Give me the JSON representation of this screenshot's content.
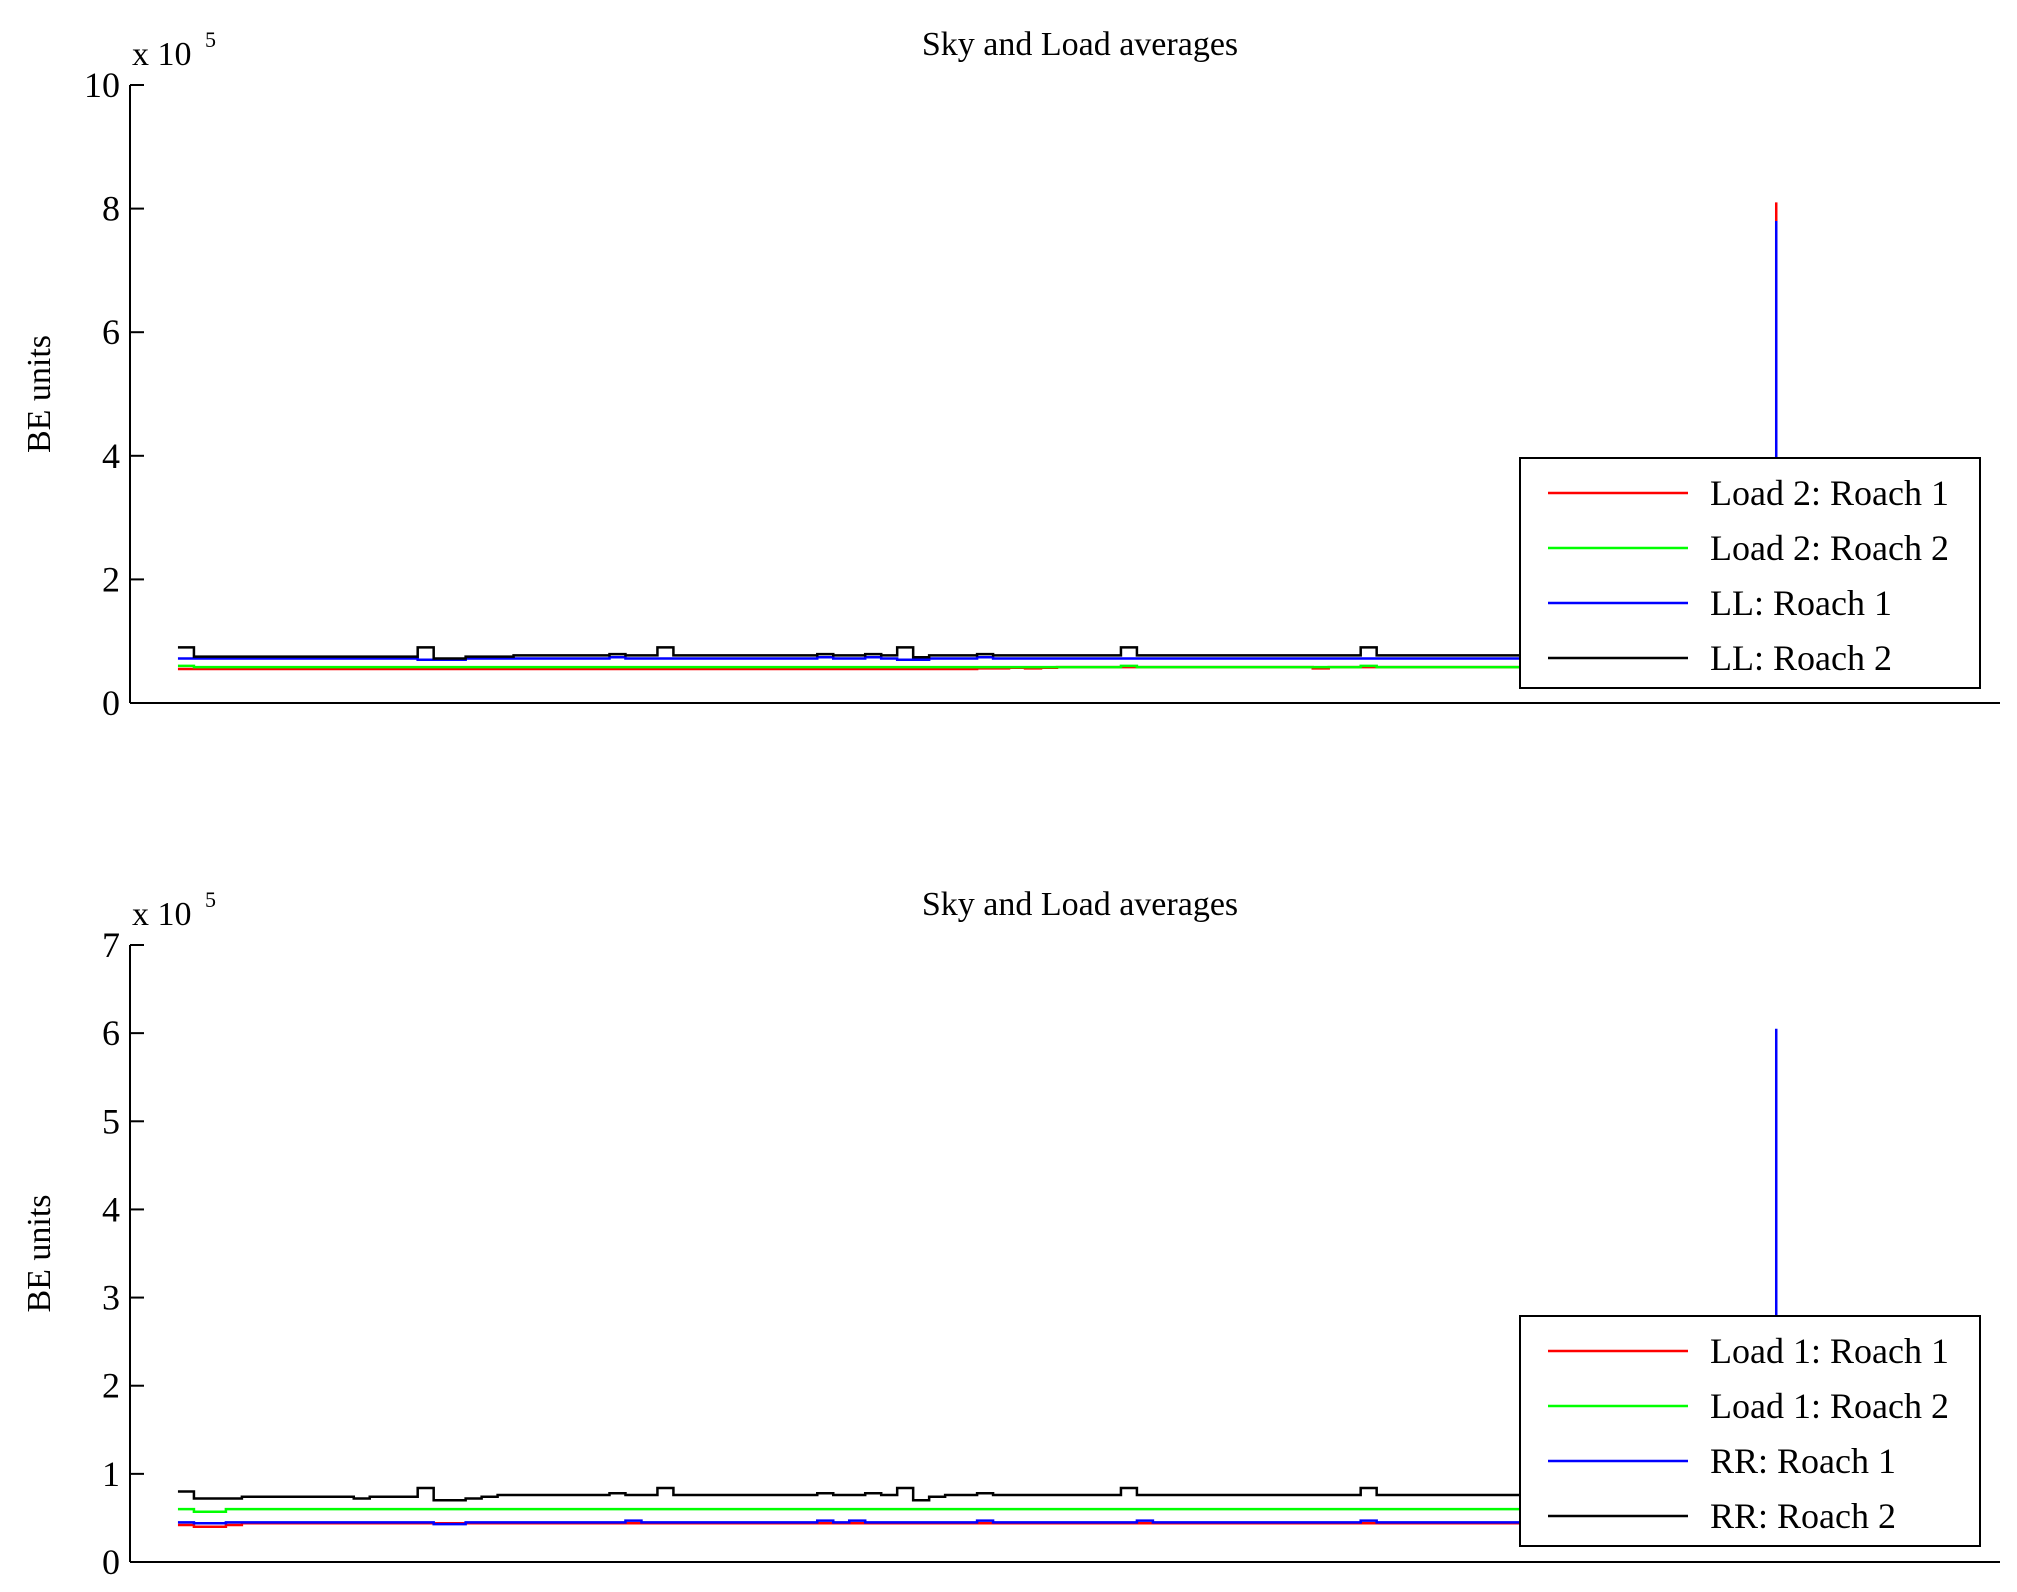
{
  "chart_data": [
    {
      "type": "line",
      "title": "Sky and Load averages",
      "xlabel": "",
      "ylabel": "BE units",
      "multiplier": "x 10",
      "multiplier_exponent": "5",
      "x": [
        0,
        1,
        2,
        3,
        4,
        5,
        6,
        7,
        8,
        9,
        10,
        11,
        12,
        13,
        14,
        15,
        16,
        17,
        18,
        19,
        20,
        21,
        22,
        23,
        24,
        25,
        26,
        27,
        28,
        29,
        30,
        31,
        32,
        33,
        34,
        35,
        36,
        37,
        38,
        39,
        40,
        41,
        42,
        43,
        44,
        45,
        46,
        47,
        48,
        49,
        50,
        51,
        52,
        53,
        54,
        55,
        56,
        57,
        58,
        59,
        60,
        61,
        62,
        63,
        64,
        65,
        66,
        67,
        68,
        69,
        70,
        71,
        72,
        73,
        74,
        75,
        76,
        77,
        78,
        79,
        80,
        81,
        82,
        83,
        84,
        85,
        86,
        87,
        88,
        89,
        90,
        91,
        92,
        93,
        94,
        95,
        96,
        97,
        98,
        99,
        100
      ],
      "xlim": [
        -3,
        114
      ],
      "ylim": [
        0,
        10
      ],
      "yticks": [
        "0",
        "2",
        "4",
        "6",
        "8",
        "10"
      ],
      "ytick_values": [
        0,
        2,
        4,
        6,
        8,
        10
      ],
      "xtick_labels": [],
      "legend_location": "bottom-right",
      "series": [
        {
          "name": "Load 2: Roach 1",
          "color": "#ff0000",
          "values": [
            0.55,
            0.55,
            0.55,
            0.55,
            0.55,
            0.55,
            0.55,
            0.55,
            0.55,
            0.55,
            0.55,
            0.55,
            0.55,
            0.55,
            0.55,
            0.55,
            0.55,
            0.55,
            0.55,
            0.55,
            0.55,
            0.55,
            0.55,
            0.55,
            0.55,
            0.55,
            0.55,
            0.55,
            0.55,
            0.55,
            0.55,
            0.55,
            0.55,
            0.55,
            0.55,
            0.55,
            0.55,
            0.55,
            0.55,
            0.55,
            0.55,
            0.55,
            0.55,
            0.55,
            0.55,
            0.55,
            0.55,
            0.55,
            0.55,
            0.55,
            0.56,
            0.56,
            0.57,
            0.56,
            0.57,
            0.58,
            0.58,
            0.58,
            0.58,
            0.58,
            0.58,
            0.58,
            0.58,
            0.58,
            0.58,
            0.58,
            0.58,
            0.58,
            0.58,
            0.58,
            0.58,
            0.56,
            0.58,
            0.58,
            0.58,
            0.58,
            0.58,
            0.58,
            0.58,
            0.58,
            0.58,
            0.58,
            0.58,
            0.58,
            0.58,
            0.58,
            0.58,
            0.58,
            0.58,
            0.58,
            0.58,
            0.58,
            0.58,
            0.58,
            0.58,
            0.58,
            0.58,
            0.58,
            0.58,
            0.58,
            8.1
          ]
        },
        {
          "name": "Load 2: Roach 2",
          "color": "#00ff00",
          "values": [
            0.6,
            0.58,
            0.58,
            0.58,
            0.58,
            0.58,
            0.58,
            0.58,
            0.58,
            0.58,
            0.58,
            0.58,
            0.58,
            0.58,
            0.58,
            0.58,
            0.58,
            0.58,
            0.58,
            0.58,
            0.58,
            0.58,
            0.58,
            0.58,
            0.58,
            0.58,
            0.58,
            0.58,
            0.58,
            0.58,
            0.58,
            0.58,
            0.58,
            0.58,
            0.58,
            0.58,
            0.58,
            0.58,
            0.58,
            0.58,
            0.58,
            0.58,
            0.58,
            0.58,
            0.58,
            0.58,
            0.58,
            0.58,
            0.58,
            0.58,
            0.58,
            0.58,
            0.58,
            0.58,
            0.58,
            0.58,
            0.58,
            0.58,
            0.58,
            0.6,
            0.58,
            0.58,
            0.58,
            0.58,
            0.58,
            0.58,
            0.58,
            0.58,
            0.58,
            0.58,
            0.58,
            0.58,
            0.58,
            0.58,
            0.6,
            0.58,
            0.58,
            0.58,
            0.58,
            0.58,
            0.58,
            0.58,
            0.58,
            0.58,
            0.58,
            0.58,
            0.58,
            0.58,
            0.58,
            0.58,
            0.6,
            0.58,
            0.58,
            0.58,
            0.58,
            0.58,
            0.58,
            0.58,
            0.58,
            0.58,
            0.6
          ]
        },
        {
          "name": "LL: Roach 1",
          "color": "#0000ff",
          "values": [
            0.72,
            0.72,
            0.72,
            0.72,
            0.72,
            0.72,
            0.72,
            0.72,
            0.72,
            0.72,
            0.72,
            0.72,
            0.72,
            0.72,
            0.72,
            0.7,
            0.7,
            0.7,
            0.72,
            0.72,
            0.72,
            0.72,
            0.72,
            0.72,
            0.72,
            0.72,
            0.72,
            0.74,
            0.72,
            0.72,
            0.72,
            0.72,
            0.72,
            0.72,
            0.72,
            0.72,
            0.72,
            0.72,
            0.72,
            0.72,
            0.74,
            0.72,
            0.72,
            0.74,
            0.72,
            0.7,
            0.7,
            0.72,
            0.72,
            0.72,
            0.74,
            0.72,
            0.72,
            0.72,
            0.72,
            0.72,
            0.72,
            0.72,
            0.72,
            0.72,
            0.72,
            0.72,
            0.72,
            0.72,
            0.72,
            0.72,
            0.72,
            0.72,
            0.72,
            0.72,
            0.72,
            0.72,
            0.72,
            0.72,
            0.72,
            0.72,
            0.72,
            0.72,
            0.72,
            0.72,
            0.72,
            0.72,
            0.72,
            0.72,
            0.72,
            0.72,
            0.72,
            0.72,
            0.72,
            0.72,
            0.72,
            0.72,
            0.72,
            0.72,
            0.72,
            0.72,
            0.72,
            0.72,
            0.72,
            0.72,
            7.8
          ]
        },
        {
          "name": "LL: Roach 2",
          "color": "#000000",
          "values": [
            0.9,
            0.75,
            0.75,
            0.75,
            0.75,
            0.75,
            0.75,
            0.75,
            0.75,
            0.75,
            0.75,
            0.75,
            0.75,
            0.75,
            0.75,
            0.9,
            0.72,
            0.72,
            0.75,
            0.75,
            0.75,
            0.77,
            0.77,
            0.77,
            0.77,
            0.77,
            0.77,
            0.79,
            0.77,
            0.77,
            0.9,
            0.77,
            0.77,
            0.77,
            0.77,
            0.77,
            0.77,
            0.77,
            0.77,
            0.77,
            0.79,
            0.77,
            0.77,
            0.79,
            0.77,
            0.9,
            0.74,
            0.77,
            0.77,
            0.77,
            0.79,
            0.77,
            0.77,
            0.77,
            0.77,
            0.77,
            0.77,
            0.77,
            0.77,
            0.9,
            0.77,
            0.77,
            0.77,
            0.77,
            0.77,
            0.77,
            0.77,
            0.77,
            0.77,
            0.77,
            0.77,
            0.77,
            0.77,
            0.77,
            0.9,
            0.77,
            0.77,
            0.77,
            0.77,
            0.77,
            0.77,
            0.77,
            0.77,
            0.77,
            0.77,
            0.77,
            0.77,
            0.77,
            0.77,
            0.77,
            0.9,
            0.77,
            0.77,
            0.77,
            0.77,
            0.77,
            0.77,
            0.77,
            0.77,
            0.77,
            0.95
          ]
        }
      ]
    },
    {
      "type": "line",
      "title": "Sky and Load averages",
      "xlabel": "",
      "ylabel": "BE units",
      "multiplier": "x 10",
      "multiplier_exponent": "5",
      "x": [
        0,
        1,
        2,
        3,
        4,
        5,
        6,
        7,
        8,
        9,
        10,
        11,
        12,
        13,
        14,
        15,
        16,
        17,
        18,
        19,
        20,
        21,
        22,
        23,
        24,
        25,
        26,
        27,
        28,
        29,
        30,
        31,
        32,
        33,
        34,
        35,
        36,
        37,
        38,
        39,
        40,
        41,
        42,
        43,
        44,
        45,
        46,
        47,
        48,
        49,
        50,
        51,
        52,
        53,
        54,
        55,
        56,
        57,
        58,
        59,
        60,
        61,
        62,
        63,
        64,
        65,
        66,
        67,
        68,
        69,
        70,
        71,
        72,
        73,
        74,
        75,
        76,
        77,
        78,
        79,
        80,
        81,
        82,
        83,
        84,
        85,
        86,
        87,
        88,
        89,
        90,
        91,
        92,
        93,
        94,
        95,
        96,
        97,
        98,
        99,
        100
      ],
      "xlim": [
        -3,
        114
      ],
      "ylim": [
        0,
        7
      ],
      "yticks": [
        "0",
        "1",
        "2",
        "3",
        "4",
        "5",
        "6",
        "7"
      ],
      "ytick_values": [
        0,
        1,
        2,
        3,
        4,
        5,
        6,
        7
      ],
      "xtick_labels": [],
      "legend_location": "bottom-right",
      "series": [
        {
          "name": "Load 1: Roach 1",
          "color": "#ff0000",
          "values": [
            0.42,
            0.4,
            0.4,
            0.42,
            0.44,
            0.44,
            0.44,
            0.44,
            0.44,
            0.44,
            0.44,
            0.44,
            0.44,
            0.44,
            0.44,
            0.44,
            0.44,
            0.44,
            0.44,
            0.44,
            0.44,
            0.44,
            0.44,
            0.44,
            0.44,
            0.44,
            0.44,
            0.44,
            0.44,
            0.44,
            0.44,
            0.44,
            0.44,
            0.44,
            0.44,
            0.44,
            0.44,
            0.44,
            0.44,
            0.44,
            0.44,
            0.44,
            0.44,
            0.44,
            0.44,
            0.44,
            0.44,
            0.44,
            0.44,
            0.44,
            0.44,
            0.44,
            0.44,
            0.44,
            0.44,
            0.44,
            0.44,
            0.44,
            0.44,
            0.44,
            0.44,
            0.44,
            0.44,
            0.44,
            0.44,
            0.44,
            0.44,
            0.44,
            0.44,
            0.44,
            0.44,
            0.44,
            0.44,
            0.44,
            0.44,
            0.44,
            0.44,
            0.44,
            0.44,
            0.44,
            0.44,
            0.44,
            0.44,
            0.44,
            0.44,
            0.44,
            0.44,
            0.44,
            0.44,
            0.44,
            0.44,
            0.44,
            0.44,
            0.44,
            0.44,
            0.44,
            0.44,
            0.44,
            0.44,
            0.44,
            0.5
          ]
        },
        {
          "name": "Load 1: Roach 2",
          "color": "#00ff00",
          "values": [
            0.6,
            0.57,
            0.57,
            0.6,
            0.6,
            0.6,
            0.6,
            0.6,
            0.6,
            0.6,
            0.6,
            0.6,
            0.6,
            0.6,
            0.6,
            0.6,
            0.6,
            0.6,
            0.6,
            0.6,
            0.6,
            0.6,
            0.6,
            0.6,
            0.6,
            0.6,
            0.6,
            0.6,
            0.6,
            0.6,
            0.6,
            0.6,
            0.6,
            0.6,
            0.6,
            0.6,
            0.6,
            0.6,
            0.6,
            0.6,
            0.6,
            0.6,
            0.6,
            0.6,
            0.6,
            0.6,
            0.6,
            0.6,
            0.6,
            0.6,
            0.6,
            0.6,
            0.6,
            0.6,
            0.6,
            0.6,
            0.6,
            0.6,
            0.6,
            0.6,
            0.6,
            0.6,
            0.6,
            0.6,
            0.6,
            0.6,
            0.6,
            0.6,
            0.6,
            0.6,
            0.6,
            0.6,
            0.6,
            0.6,
            0.6,
            0.6,
            0.6,
            0.6,
            0.6,
            0.6,
            0.6,
            0.6,
            0.6,
            0.6,
            0.6,
            0.6,
            0.6,
            0.6,
            0.6,
            0.6,
            0.6,
            0.6,
            0.6,
            0.6,
            0.6,
            0.6,
            0.6,
            0.6,
            0.6,
            0.6,
            0.65
          ]
        },
        {
          "name": "RR: Roach 1",
          "color": "#0000ff",
          "values": [
            0.45,
            0.44,
            0.44,
            0.45,
            0.45,
            0.45,
            0.45,
            0.45,
            0.45,
            0.45,
            0.45,
            0.45,
            0.45,
            0.45,
            0.45,
            0.45,
            0.43,
            0.43,
            0.45,
            0.45,
            0.45,
            0.45,
            0.45,
            0.45,
            0.45,
            0.45,
            0.45,
            0.45,
            0.47,
            0.45,
            0.45,
            0.45,
            0.45,
            0.45,
            0.45,
            0.45,
            0.45,
            0.45,
            0.45,
            0.45,
            0.47,
            0.45,
            0.47,
            0.45,
            0.45,
            0.45,
            0.45,
            0.45,
            0.45,
            0.45,
            0.47,
            0.45,
            0.45,
            0.45,
            0.45,
            0.45,
            0.45,
            0.45,
            0.45,
            0.45,
            0.47,
            0.45,
            0.45,
            0.45,
            0.45,
            0.45,
            0.45,
            0.45,
            0.45,
            0.45,
            0.45,
            0.45,
            0.45,
            0.45,
            0.47,
            0.45,
            0.45,
            0.45,
            0.45,
            0.45,
            0.45,
            0.45,
            0.45,
            0.45,
            0.45,
            0.45,
            0.45,
            0.45,
            0.45,
            0.45,
            0.52,
            0.45,
            0.55,
            0.45,
            0.45,
            0.45,
            0.45,
            0.45,
            0.45,
            0.45,
            6.05
          ]
        },
        {
          "name": "RR: Roach 2",
          "color": "#000000",
          "values": [
            0.8,
            0.72,
            0.72,
            0.72,
            0.74,
            0.74,
            0.74,
            0.74,
            0.74,
            0.74,
            0.74,
            0.72,
            0.74,
            0.74,
            0.74,
            0.84,
            0.7,
            0.7,
            0.72,
            0.74,
            0.76,
            0.76,
            0.76,
            0.76,
            0.76,
            0.76,
            0.76,
            0.78,
            0.76,
            0.76,
            0.84,
            0.76,
            0.76,
            0.76,
            0.76,
            0.76,
            0.76,
            0.76,
            0.76,
            0.76,
            0.78,
            0.76,
            0.76,
            0.78,
            0.76,
            0.84,
            0.7,
            0.74,
            0.76,
            0.76,
            0.78,
            0.76,
            0.76,
            0.76,
            0.76,
            0.76,
            0.76,
            0.76,
            0.76,
            0.84,
            0.76,
            0.76,
            0.76,
            0.76,
            0.76,
            0.76,
            0.76,
            0.76,
            0.76,
            0.76,
            0.76,
            0.76,
            0.76,
            0.76,
            0.84,
            0.76,
            0.76,
            0.76,
            0.76,
            0.76,
            0.76,
            0.76,
            0.76,
            0.76,
            0.76,
            0.76,
            0.76,
            0.76,
            0.76,
            0.76,
            0.88,
            0.76,
            0.76,
            0.76,
            0.76,
            0.76,
            0.76,
            0.76,
            0.76,
            0.76,
            0.82
          ]
        }
      ]
    }
  ]
}
